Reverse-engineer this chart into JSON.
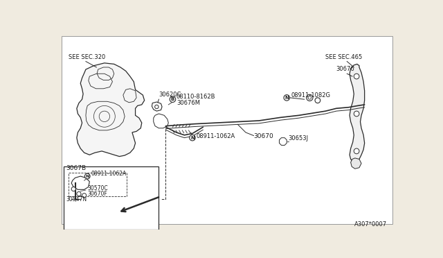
{
  "bg_color": "#f0ebe0",
  "line_color": "#2a2a2a",
  "text_color": "#1a1a1a",
  "fig_width": 6.4,
  "fig_height": 3.72,
  "labels": {
    "see_sec_320": "SEE SEC.320",
    "see_sec_465": "SEE SEC.465",
    "part_30620C": "30620C",
    "part_08110_8162B": "08110-8162B",
    "part_30676M": "30676M",
    "part_30670": "30670",
    "part_30653J": "30653J",
    "part_08911_1082G": "08911-1082G",
    "part_30676": "30676",
    "part_08911_1062A_main": "08911-1062A",
    "part_3067B": "3067B",
    "part_08911_1062A_inset": "08911-1062A",
    "part_30570C": "30570C",
    "part_30670F": "30670F",
    "part_30547N": "30547N",
    "diagram_code": "A307*0007"
  },
  "symbol_N": "N",
  "symbol_B": "B"
}
